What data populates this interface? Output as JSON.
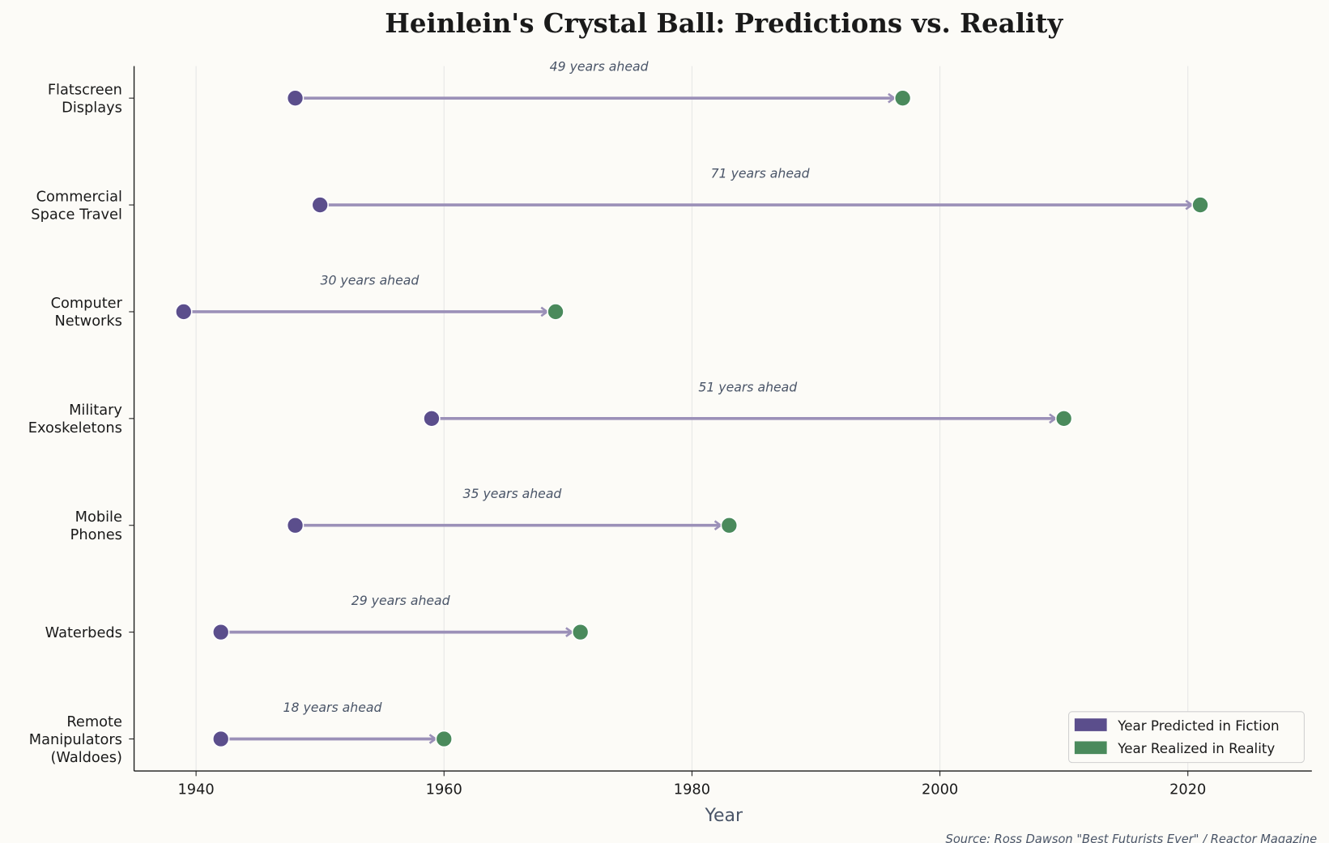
{
  "chart_data": {
    "type": "dumbbell",
    "title": "Heinlein's Crystal Ball: Predictions vs. Reality",
    "xlabel": "Year",
    "ylabel": "",
    "xlim": [
      1935,
      2030
    ],
    "xticks": [
      1940,
      1960,
      1980,
      2000,
      2020
    ],
    "grid": "vertical",
    "categories": [
      [
        "Remote",
        "Manipulators",
        "(Waldoes)"
      ],
      [
        "Waterbeds"
      ],
      [
        "Mobile",
        "Phones"
      ],
      [
        "Military",
        "Exoskeletons"
      ],
      [
        "Computer",
        "Networks"
      ],
      [
        "Commercial",
        "Space Travel"
      ],
      [
        "Flatscreen",
        "Displays"
      ]
    ],
    "series": [
      {
        "name": "Year Predicted in Fiction",
        "color": "#5b4e8c",
        "values": [
          1942,
          1942,
          1948,
          1959,
          1939,
          1950,
          1948
        ]
      },
      {
        "name": "Year Realized in Reality",
        "color": "#4a8a5c",
        "values": [
          1960,
          1971,
          1983,
          2010,
          1969,
          2021,
          1997
        ]
      }
    ],
    "annotations": [
      "18 years ahead",
      "29 years ahead",
      "35 years ahead",
      "51 years ahead",
      "30 years ahead",
      "71 years ahead",
      "49 years ahead"
    ],
    "legend_position": "bottom-right",
    "source": "Source: Ross Dawson \"Best Futurists Ever\" / Reactor Magazine"
  }
}
